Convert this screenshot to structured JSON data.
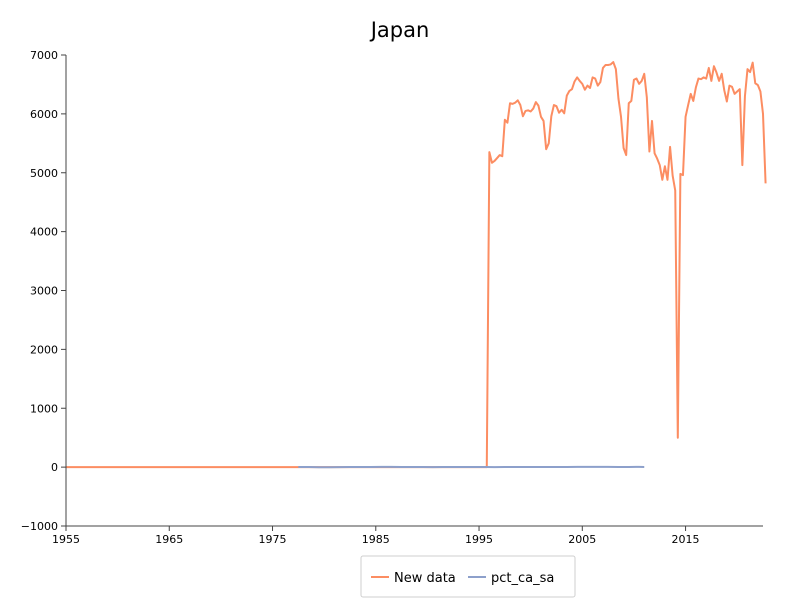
{
  "chart_data": {
    "type": "line",
    "title": "Japan",
    "xlabel": "",
    "ylabel": "",
    "xlim": [
      1955,
      2022.5
    ],
    "ylim": [
      -1000,
      7000
    ],
    "x_ticks": [
      1955,
      1965,
      1975,
      1985,
      1995,
      2005,
      2015
    ],
    "x_tick_labels": [
      "1955",
      "1965",
      "1975",
      "1985",
      "1995",
      "2005",
      "2015"
    ],
    "y_ticks": [
      -1000,
      0,
      1000,
      2000,
      3000,
      4000,
      5000,
      6000,
      7000
    ],
    "y_tick_labels": [
      "−1000",
      "0",
      "1000",
      "2000",
      "3000",
      "4000",
      "5000",
      "6000",
      "7000"
    ],
    "grid": false,
    "legend_position": "bottom-center",
    "series": [
      {
        "name": "New data",
        "color": "#fc8d62",
        "points": [
          [
            1955,
            0
          ],
          [
            1977,
            0
          ],
          [
            1995.75,
            0
          ],
          [
            1996.0,
            5350
          ],
          [
            1996.25,
            5170
          ],
          [
            1996.5,
            5200
          ],
          [
            1996.75,
            5250
          ],
          [
            1997.0,
            5300
          ],
          [
            1997.25,
            5280
          ],
          [
            1997.5,
            5900
          ],
          [
            1997.75,
            5850
          ],
          [
            1998.0,
            6180
          ],
          [
            1998.25,
            6170
          ],
          [
            1998.5,
            6190
          ],
          [
            1998.75,
            6230
          ],
          [
            1999.0,
            6150
          ],
          [
            1999.25,
            5960
          ],
          [
            1999.5,
            6050
          ],
          [
            1999.75,
            6060
          ],
          [
            2000.0,
            6040
          ],
          [
            2000.25,
            6090
          ],
          [
            2000.5,
            6200
          ],
          [
            2000.75,
            6140
          ],
          [
            2001.0,
            5950
          ],
          [
            2001.25,
            5880
          ],
          [
            2001.5,
            5400
          ],
          [
            2001.75,
            5500
          ],
          [
            2002.0,
            5960
          ],
          [
            2002.25,
            6150
          ],
          [
            2002.5,
            6130
          ],
          [
            2002.75,
            6020
          ],
          [
            2003.0,
            6070
          ],
          [
            2003.25,
            6010
          ],
          [
            2003.5,
            6310
          ],
          [
            2003.75,
            6390
          ],
          [
            2004.0,
            6420
          ],
          [
            2004.25,
            6550
          ],
          [
            2004.5,
            6620
          ],
          [
            2004.75,
            6560
          ],
          [
            2005.0,
            6510
          ],
          [
            2005.25,
            6410
          ],
          [
            2005.5,
            6480
          ],
          [
            2005.75,
            6440
          ],
          [
            2006.0,
            6620
          ],
          [
            2006.25,
            6600
          ],
          [
            2006.5,
            6480
          ],
          [
            2006.75,
            6540
          ],
          [
            2007.0,
            6780
          ],
          [
            2007.25,
            6830
          ],
          [
            2007.5,
            6830
          ],
          [
            2007.75,
            6840
          ],
          [
            2008.0,
            6880
          ],
          [
            2008.25,
            6760
          ],
          [
            2008.5,
            6260
          ],
          [
            2008.75,
            5950
          ],
          [
            2009.0,
            5420
          ],
          [
            2009.25,
            5300
          ],
          [
            2009.5,
            6180
          ],
          [
            2009.75,
            6220
          ],
          [
            2010.0,
            6580
          ],
          [
            2010.25,
            6600
          ],
          [
            2010.5,
            6510
          ],
          [
            2010.75,
            6560
          ],
          [
            2011.0,
            6680
          ],
          [
            2011.25,
            6280
          ],
          [
            2011.5,
            5360
          ],
          [
            2011.75,
            5880
          ],
          [
            2012.0,
            5330
          ],
          [
            2012.25,
            5240
          ],
          [
            2012.5,
            5130
          ],
          [
            2012.75,
            4880
          ],
          [
            2013.0,
            5110
          ],
          [
            2013.25,
            4880
          ],
          [
            2013.5,
            5440
          ],
          [
            2013.75,
            4950
          ],
          [
            2014.0,
            4700
          ],
          [
            2014.25,
            500
          ],
          [
            2014.5,
            4980
          ],
          [
            2014.75,
            4960
          ],
          [
            2015.0,
            5950
          ],
          [
            2015.25,
            6150
          ],
          [
            2015.5,
            6340
          ],
          [
            2015.75,
            6220
          ],
          [
            2016.0,
            6450
          ],
          [
            2016.25,
            6600
          ],
          [
            2016.5,
            6590
          ],
          [
            2016.75,
            6620
          ],
          [
            2017.0,
            6600
          ],
          [
            2017.25,
            6780
          ],
          [
            2017.5,
            6560
          ],
          [
            2017.75,
            6810
          ],
          [
            2018.0,
            6700
          ],
          [
            2018.25,
            6560
          ],
          [
            2018.5,
            6680
          ],
          [
            2018.75,
            6400
          ],
          [
            2019.0,
            6210
          ],
          [
            2019.25,
            6480
          ],
          [
            2019.5,
            6460
          ],
          [
            2019.75,
            6340
          ],
          [
            2020.0,
            6380
          ],
          [
            2020.25,
            6420
          ],
          [
            2020.5,
            5130
          ],
          [
            2020.75,
            6300
          ],
          [
            2021.0,
            6760
          ],
          [
            2021.25,
            6710
          ],
          [
            2021.5,
            6870
          ],
          [
            2021.75,
            6520
          ],
          [
            2022.0,
            6490
          ],
          [
            2022.25,
            6380
          ],
          [
            2022.5,
            6000
          ],
          [
            2022.75,
            4820
          ]
        ]
      },
      {
        "name": "pct_ca_sa",
        "color": "#8da0cb",
        "points": [
          [
            1977.5,
            2
          ],
          [
            1978.5,
            3
          ],
          [
            1979.5,
            -2
          ],
          [
            1980.5,
            -3
          ],
          [
            1981.5,
            1
          ],
          [
            1982.5,
            2
          ],
          [
            1983.5,
            2
          ],
          [
            1984.5,
            3
          ],
          [
            1985.5,
            4
          ],
          [
            1986.5,
            4
          ],
          [
            1987.5,
            3
          ],
          [
            1988.5,
            3
          ],
          [
            1989.5,
            2
          ],
          [
            1990.5,
            1
          ],
          [
            1991.5,
            2
          ],
          [
            1992.5,
            3
          ],
          [
            1993.5,
            3
          ],
          [
            1994.5,
            3
          ],
          [
            1995.5,
            2
          ],
          [
            1996.5,
            1
          ],
          [
            1997.5,
            2
          ],
          [
            1998.5,
            3
          ],
          [
            1999.5,
            2
          ],
          [
            2000.5,
            2
          ],
          [
            2001.5,
            2
          ],
          [
            2002.5,
            3
          ],
          [
            2003.5,
            3
          ],
          [
            2004.5,
            4
          ],
          [
            2005.5,
            4
          ],
          [
            2006.5,
            4
          ],
          [
            2007.5,
            5
          ],
          [
            2008.5,
            3
          ],
          [
            2009.5,
            3
          ],
          [
            2010.5,
            4
          ],
          [
            2011.0,
            3
          ]
        ]
      }
    ]
  }
}
